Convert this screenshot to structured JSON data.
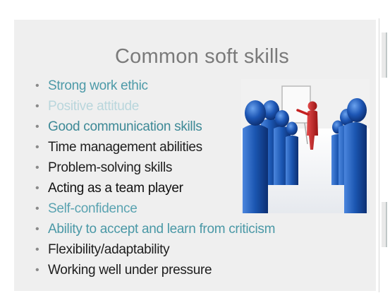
{
  "slide": {
    "title": "Common soft skills",
    "bullets": [
      {
        "text": "Strong work ethic",
        "color": "#4d9aa8"
      },
      {
        "text": "Positive attitude",
        "color": "#b9d6dc"
      },
      {
        "text": "Good communication skills",
        "color": "#3d8996"
      },
      {
        "text": "Time management abilities",
        "color": "#1e1e1e"
      },
      {
        "text": "Problem-solving skills",
        "color": "#1e1e1e"
      },
      {
        "text": "Acting as a team player",
        "color": "#111111"
      },
      {
        "text": "Self-confidence",
        "color": "#5aa3b1"
      },
      {
        "text": "Ability to accept and learn from criticism",
        "color": "#4a98a6"
      },
      {
        "text": "Flexibility/adaptability",
        "color": "#1e1e1e"
      },
      {
        "text": "Working well under pressure",
        "color": "#1e1e1e"
      }
    ],
    "bullet_glyph": "•",
    "illustration": "meeting-presentation-icon",
    "colors": {
      "background": "#efefef",
      "title": "#7a7a7a",
      "figure_blue": "#1a55b0",
      "presenter_red": "#c42020"
    }
  }
}
